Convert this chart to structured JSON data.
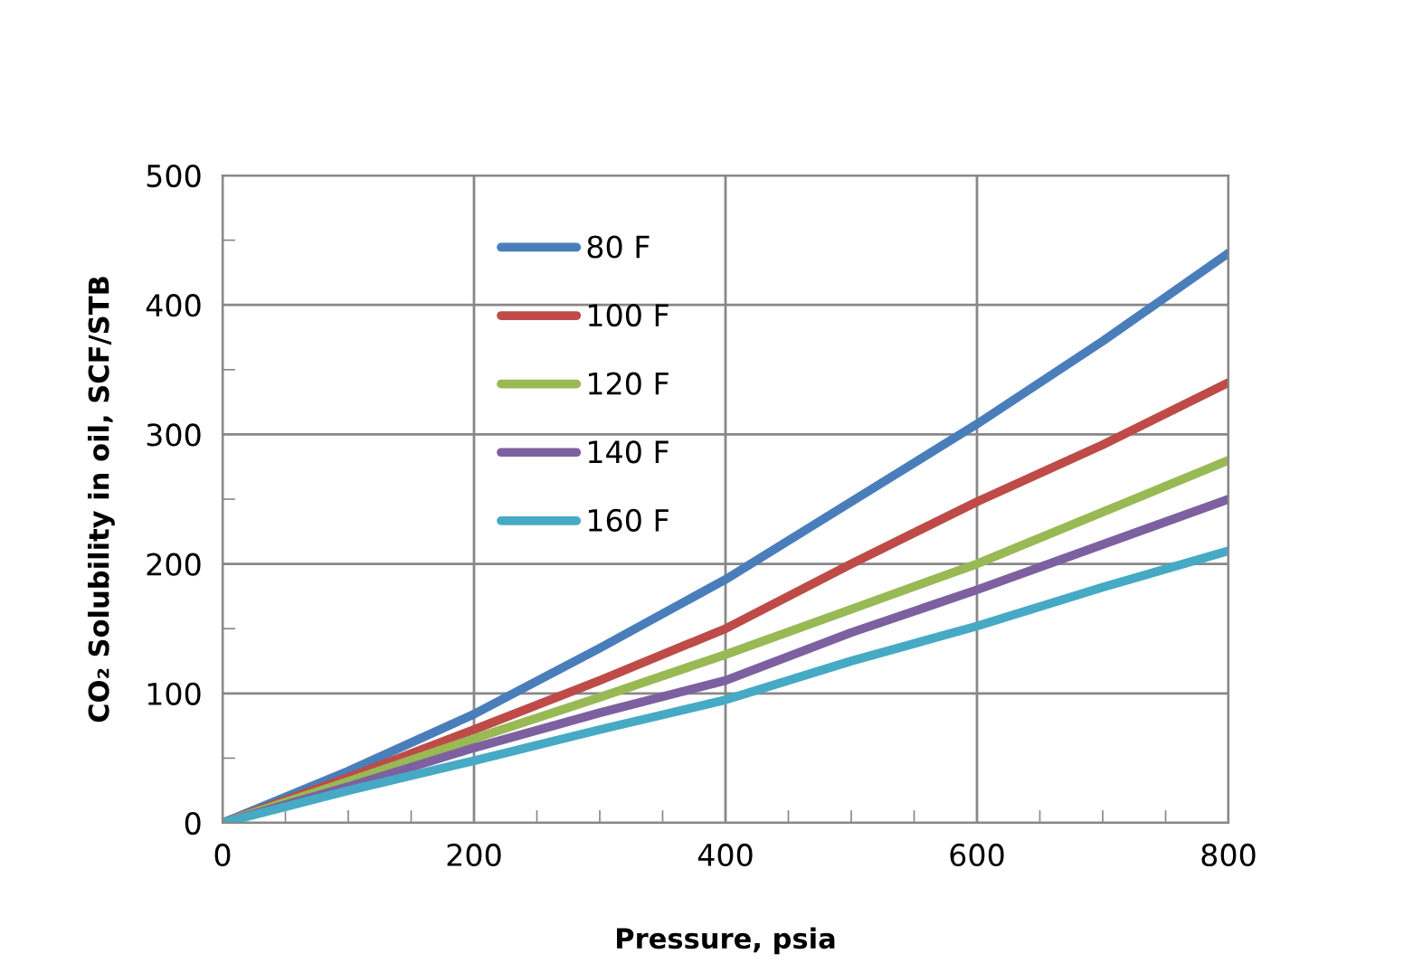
{
  "chart_data": {
    "type": "line",
    "xlabel": "Pressure, psia",
    "ylabel": "CO₂ Solubility in oil, SCF/STB",
    "x": [
      0,
      100,
      200,
      300,
      400,
      500,
      600,
      700,
      800
    ],
    "series": [
      {
        "name": "80 F",
        "color": "#4a7ebb",
        "values": [
          0,
          40,
          84,
          135,
          188,
          248,
          308,
          372,
          440
        ]
      },
      {
        "name": "100 F",
        "color": "#be4b48",
        "values": [
          0,
          35,
          72,
          110,
          150,
          200,
          248,
          292,
          340
        ]
      },
      {
        "name": "120 F",
        "color": "#98b954",
        "values": [
          0,
          32,
          65,
          97,
          130,
          165,
          200,
          240,
          280
        ]
      },
      {
        "name": "140 F",
        "color": "#7d60a0",
        "values": [
          0,
          28,
          58,
          85,
          110,
          147,
          180,
          215,
          250
        ]
      },
      {
        "name": "160 F",
        "color": "#46aac5",
        "values": [
          0,
          25,
          48,
          72,
          95,
          125,
          152,
          182,
          210
        ]
      }
    ],
    "xlim": [
      0,
      800
    ],
    "ylim": [
      0,
      500
    ],
    "xticks": [
      0,
      200,
      400,
      600,
      800
    ],
    "yticks": [
      0,
      100,
      200,
      300,
      400,
      500
    ],
    "grid": true,
    "legend": "top left",
    "marker": "none",
    "line_style": "solid"
  }
}
